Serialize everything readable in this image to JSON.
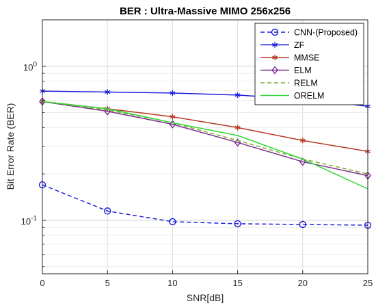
{
  "chart_data": {
    "type": "line",
    "title": "BER : Ultra-Massive MIMO 256x256",
    "xlabel": "SNR[dB]",
    "ylabel": "Bit Error Rate (BER)",
    "x": [
      0,
      5,
      10,
      15,
      20,
      25
    ],
    "xlim": [
      0,
      25
    ],
    "ylim": [
      0.045,
      2
    ],
    "yscale": "log",
    "grid": true,
    "legend_position": "top-right",
    "x_ticks": [
      "0",
      "5",
      "10",
      "15",
      "20",
      "25"
    ],
    "y_tick_labels": [
      {
        "value": 1,
        "base": "10",
        "exp": "0"
      },
      {
        "value": 0.1,
        "base": "10",
        "exp": "-1"
      }
    ],
    "series": [
      {
        "name": "CNN-(Proposed)",
        "values": [
          0.17,
          0.115,
          0.098,
          0.095,
          0.094,
          0.093
        ],
        "color": "#1c1cdc",
        "dash": "dashed",
        "marker": "circle"
      },
      {
        "name": "ZF",
        "values": [
          0.69,
          0.68,
          0.67,
          0.65,
          0.61,
          0.55
        ],
        "color": "#1c1cdc",
        "dash": "solid",
        "marker": "asterisk"
      },
      {
        "name": "MMSE",
        "values": [
          0.59,
          0.53,
          0.47,
          0.4,
          0.33,
          0.28
        ],
        "color": "#b5371e",
        "dash": "solid",
        "marker": "asterisk"
      },
      {
        "name": "ELM",
        "values": [
          0.59,
          0.51,
          0.42,
          0.32,
          0.24,
          0.195
        ],
        "color": "#7e2f8e",
        "dash": "solid",
        "marker": "diamond"
      },
      {
        "name": "RELM",
        "values": [
          0.59,
          0.52,
          0.43,
          0.33,
          0.25,
          0.2
        ],
        "color": "#77ac30",
        "dash": "dashed",
        "marker": "none"
      },
      {
        "name": "ORELM",
        "values": [
          0.59,
          0.53,
          0.43,
          0.355,
          0.25,
          0.16
        ],
        "color": "#33d633",
        "dash": "solid",
        "marker": "none"
      }
    ]
  }
}
